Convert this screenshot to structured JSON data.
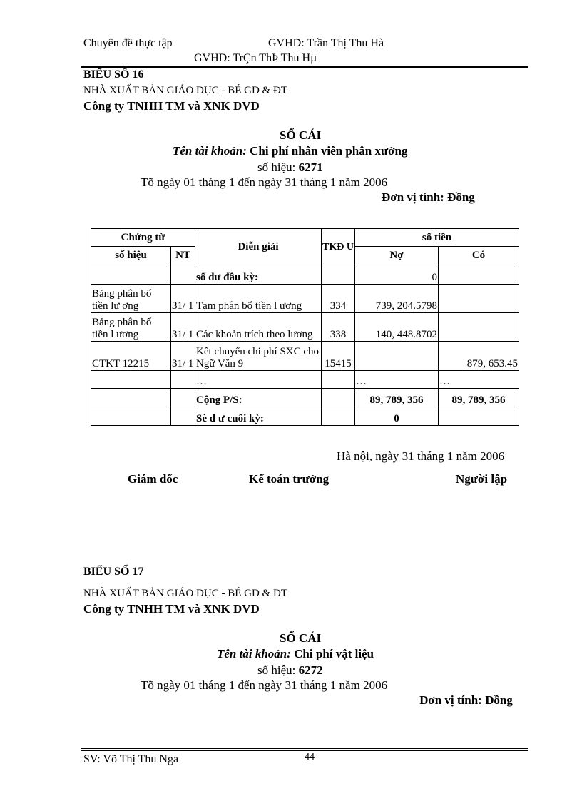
{
  "header": {
    "left": "Chuyên đề thực tập",
    "gvhd1": "GVHD: Trần Thị Thu Hà",
    "gvhd2": "GVHD: TrÇn ThÞ Thu Hµ"
  },
  "section1": {
    "bieu": "BIỂU SỐ 16",
    "publisher": "NHÀ XUẤT  BẢN GIÁO DỤC - BÉ GD & ĐT",
    "company": "Công ty TNHH TM và XNK DVD",
    "title": "SỔ CÁI",
    "account_label": "Tên tài khoản:",
    "account_name": "Chi phí nhân viên phân xưởng",
    "code_label": "số hiệu:",
    "code": "6271",
    "period": "Tõ ngày 01 tháng 1 đến ngày 31 tháng 1 năm 2006",
    "unit": "Đơn vị tính: Đồng",
    "table": {
      "headers": {
        "chung_tu": "Chứng từ",
        "so_hieu": "số hiệu",
        "nt": "NT",
        "dien_giai": "Diễn giải",
        "tkdu": "TKĐ U",
        "so_tien": "số tiền",
        "no": "Nợ",
        "co": "Có"
      },
      "rows": [
        {
          "so_hieu": "",
          "nt": "",
          "dien_giai": "số dư    đầu kỳ:",
          "tkdu": "",
          "no": "0",
          "co": ""
        },
        {
          "so_hieu": "Bảng phân bổ tiền lư   ơng",
          "nt": "31/ 1",
          "dien_giai": "Tạm phân bổ tiền l   ương",
          "tkdu": "334",
          "no": "739, 204.5798",
          "co": ""
        },
        {
          "so_hieu": "Bảng phân bổ tiền l   ương",
          "nt": "31/ 1",
          "dien_giai": "Các khoản trích theo lương",
          "tkdu": "338",
          "no": "140, 448.8702",
          "co": ""
        },
        {
          "so_hieu": "CTKT  12215",
          "nt": "31/ 1",
          "dien_giai": "Kết chuyển chi phí SXC cho Ngữ Văn 9",
          "tkdu": "15415",
          "no": "",
          "co": "879, 653.45"
        },
        {
          "so_hieu": "",
          "nt": "",
          "dien_giai": "…",
          "tkdu": "",
          "no": "…",
          "co": "…"
        },
        {
          "so_hieu": "",
          "nt": "",
          "dien_giai": "Cộng P/S:",
          "tkdu": "",
          "no": "89, 789, 356",
          "co": "89, 789, 356"
        },
        {
          "so_hieu": "",
          "nt": "",
          "dien_giai": "Sè d    ư cuối kỳ:",
          "tkdu": "",
          "no": "0",
          "co": ""
        }
      ]
    },
    "date_place": "Hà nội, ngày 31 tháng 1 năm 2006",
    "signers": [
      "Giám đốc",
      "Kế toán trưởng",
      "Người lập"
    ]
  },
  "section2": {
    "bieu": "BIỂU SỐ 17",
    "publisher": "NHÀ XUẤT  BẢN GIÁO DỤC - BÉ GD & ĐT",
    "company": "Công ty TNHH TM và XNK DVD",
    "title": "SỔ CÁI",
    "account_label": "Tên tài khoản:",
    "account_name": "Chi phí vật liệu",
    "code_label": "số hiệu:",
    "code": "6272",
    "period": "Tõ ngày 01 tháng 1 đến ngày 31 tháng 1 năm 2006",
    "unit": "Đơn vị tính: Đồng"
  },
  "footer": {
    "student": "SV: Võ Thị Thu Nga",
    "page": "44"
  }
}
